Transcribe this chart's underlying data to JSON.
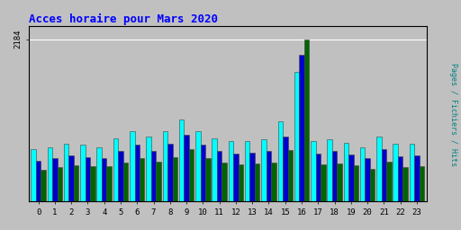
{
  "title": "Acces horaire pour Mars 2020",
  "ylabel": "Pages / Fichiers / Hits",
  "xlabel_ticks": [
    0,
    1,
    2,
    3,
    4,
    5,
    6,
    7,
    8,
    9,
    10,
    11,
    12,
    13,
    14,
    15,
    16,
    17,
    18,
    19,
    20,
    21,
    22,
    23
  ],
  "ymax": 2184,
  "ytick_label": "2184",
  "background_color": "#c0c0c0",
  "plot_bg": "#c0c0c0",
  "colors_order": [
    "#00ffff",
    "#0000cc",
    "#006400"
  ],
  "series_labels": [
    "Hits",
    "Fichiers",
    "Pages"
  ],
  "hits": [
    700,
    730,
    780,
    760,
    730,
    850,
    950,
    870,
    950,
    1100,
    950,
    850,
    820,
    820,
    840,
    1080,
    1750,
    820,
    840,
    790,
    730,
    870,
    780,
    780
  ],
  "fichiers": [
    550,
    580,
    620,
    600,
    580,
    680,
    760,
    680,
    780,
    900,
    760,
    680,
    650,
    660,
    680,
    880,
    1980,
    650,
    680,
    630,
    580,
    700,
    610,
    620
  ],
  "pages": [
    430,
    460,
    490,
    470,
    470,
    530,
    580,
    540,
    600,
    700,
    580,
    520,
    500,
    510,
    520,
    690,
    2184,
    500,
    510,
    490,
    440,
    540,
    460,
    470
  ]
}
